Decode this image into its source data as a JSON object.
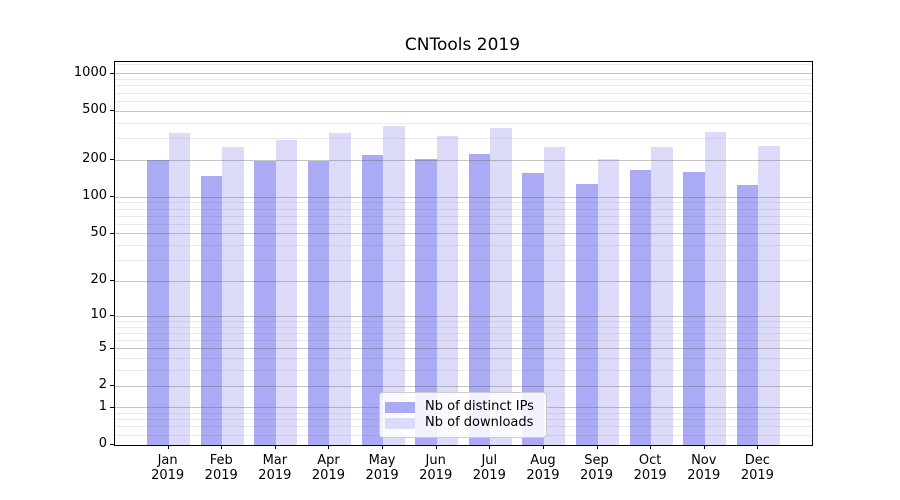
{
  "chart_data": {
    "type": "bar",
    "title": "CNTools 2019",
    "categories": [
      "Jan",
      "Feb",
      "Mar",
      "Apr",
      "May",
      "Jun",
      "Jul",
      "Aug",
      "Sep",
      "Oct",
      "Nov",
      "Dec"
    ],
    "x_year_label": "2019",
    "series": [
      {
        "name": "Nb of distinct IPs",
        "color": "#aaaaf5",
        "values": [
          202,
          148,
          196,
          198,
          220,
          206,
          224,
          157,
          127,
          168,
          160,
          125
        ]
      },
      {
        "name": "Nb of downloads",
        "color": "#dcdcfa",
        "values": [
          331,
          257,
          294,
          331,
          378,
          314,
          368,
          258,
          205,
          258,
          342,
          259
        ]
      }
    ],
    "yscale": "log1p",
    "ylabel": "",
    "xlabel": "",
    "y_ticks": [
      0,
      1,
      2,
      5,
      10,
      20,
      50,
      100,
      200,
      500,
      1000
    ],
    "y_minor_ticks": [
      0.2,
      0.4,
      0.6,
      0.8,
      3,
      4,
      6,
      7,
      8,
      9,
      30,
      40,
      60,
      70,
      80,
      90,
      300,
      400,
      600,
      700,
      800,
      900,
      1200
    ],
    "ylim": [
      0,
      1250
    ],
    "grid": true,
    "legend_position": "lower center",
    "colors": {
      "background": "#ffffff",
      "axis": "#000000",
      "grid_major": "#bebebe",
      "grid_minor": "#e8e8e8",
      "legend_border": "#cccccc"
    }
  }
}
